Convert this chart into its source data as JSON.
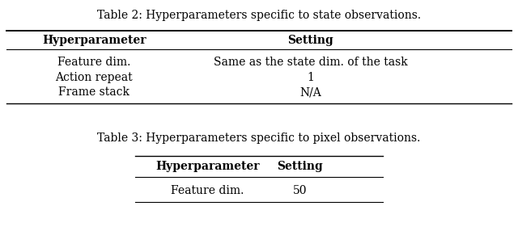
{
  "table2_caption": "Table 2: Hyperparameters specific to state observations.",
  "table2_header": [
    "Hyperparameter",
    "Setting"
  ],
  "table2_rows": [
    [
      "Feature dim.",
      "Same as the state dim. of the task"
    ],
    [
      "Action repeat",
      "1"
    ],
    [
      "Frame stack",
      "N/A"
    ]
  ],
  "table3_caption": "Table 3: Hyperparameters specific to pixel observations.",
  "table3_header": [
    "Hyperparameter",
    "Setting"
  ],
  "table3_rows": [
    [
      "Feature dim.",
      "50"
    ]
  ],
  "bg_color": "#ffffff",
  "text_color": "#000000",
  "font_size": 10,
  "caption_font_size": 10,
  "header_font_size": 10
}
